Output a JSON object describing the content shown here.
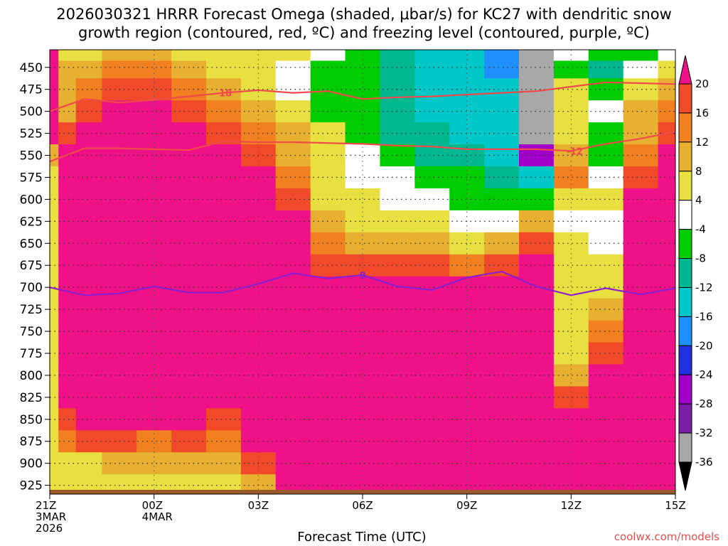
{
  "title_line1": "2026030321 HRRR Forecast Omega (shaded, μbar/s) for KC27 with dendritic snow",
  "title_line2": "growth region (contoured, red, ºC) and freezing level (contoured, purple, ºC)",
  "credit": "coolwx.com/models",
  "chart_data": {
    "type": "heatmap",
    "xlabel": "Forecast Time (UTC)",
    "ylabel": "Pressure (hPa)",
    "x_ticks": [
      {
        "hour": 0,
        "lines": [
          "21Z",
          "3MAR",
          "2026"
        ]
      },
      {
        "hour": 3,
        "lines": [
          "00Z",
          "4MAR"
        ]
      },
      {
        "hour": 6,
        "lines": [
          "03Z"
        ]
      },
      {
        "hour": 9,
        "lines": [
          "06Z"
        ]
      },
      {
        "hour": 12,
        "lines": [
          "09Z"
        ]
      },
      {
        "hour": 15,
        "lines": [
          "12Z"
        ]
      },
      {
        "hour": 18,
        "lines": [
          "15Z"
        ]
      }
    ],
    "xlim": [
      0,
      18
    ],
    "y_ticks": [
      450,
      475,
      500,
      525,
      550,
      575,
      600,
      625,
      650,
      675,
      700,
      725,
      750,
      775,
      800,
      825,
      850,
      875,
      900,
      925
    ],
    "ylim": [
      430,
      935
    ],
    "colorbar": {
      "levels": [
        -36,
        -32,
        -28,
        -24,
        -20,
        -16,
        -12,
        -8,
        -4,
        4,
        8,
        12,
        16,
        20
      ],
      "colors": [
        "#000000",
        "#a8a8a8",
        "#7a1ea8",
        "#a000c8",
        "#2030e0",
        "#1e90ff",
        "#00c8c8",
        "#00b890",
        "#00cd00",
        "#ffffff",
        "#e8e040",
        "#e8b030",
        "#f08020",
        "#f04a2a",
        "#ee1188"
      ]
    },
    "omega_series": [
      {
        "hour": 0.0,
        "values": [
          20,
          20,
          20,
          20,
          20,
          8,
          4,
          4,
          4,
          4,
          4,
          4,
          4,
          4,
          4,
          4,
          4,
          4,
          4,
          4,
          4
        ]
      },
      {
        "hour": 0.5,
        "values": [
          4,
          8,
          8,
          8,
          16,
          20,
          20,
          20,
          20,
          20,
          20,
          20,
          20,
          20,
          20,
          20,
          20,
          16,
          12,
          4,
          4
        ]
      },
      {
        "hour": 1.0,
        "values": [
          4,
          8,
          12,
          16,
          20,
          20,
          20,
          20,
          20,
          20,
          20,
          20,
          20,
          20,
          20,
          20,
          20,
          20,
          16,
          4,
          4
        ]
      },
      {
        "hour": 2.0,
        "values": [
          8,
          12,
          16,
          20,
          20,
          20,
          20,
          20,
          20,
          20,
          20,
          20,
          20,
          20,
          20,
          20,
          20,
          20,
          16,
          8,
          4
        ]
      },
      {
        "hour": 3.0,
        "values": [
          8,
          12,
          16,
          20,
          20,
          20,
          20,
          20,
          20,
          20,
          20,
          20,
          20,
          20,
          20,
          20,
          20,
          20,
          12,
          8,
          4
        ]
      },
      {
        "hour": 4.0,
        "values": [
          4,
          8,
          12,
          16,
          20,
          20,
          20,
          20,
          20,
          20,
          20,
          20,
          20,
          20,
          20,
          20,
          20,
          20,
          16,
          8,
          4
        ]
      },
      {
        "hour": 5.0,
        "values": [
          4,
          4,
          8,
          12,
          16,
          20,
          20,
          20,
          20,
          20,
          20,
          20,
          20,
          20,
          20,
          20,
          20,
          16,
          12,
          8,
          4
        ]
      },
      {
        "hour": 6.0,
        "values": [
          4,
          4,
          4,
          8,
          12,
          16,
          20,
          20,
          20,
          20,
          20,
          20,
          20,
          20,
          20,
          20,
          20,
          20,
          20,
          16,
          8
        ]
      },
      {
        "hour": 7.0,
        "values": [
          4,
          -4,
          -4,
          4,
          8,
          8,
          12,
          16,
          20,
          20,
          20,
          20,
          20,
          20,
          20,
          20,
          20,
          20,
          20,
          20,
          20
        ]
      },
      {
        "hour": 8.0,
        "values": [
          -4,
          -8,
          -8,
          -8,
          4,
          4,
          4,
          4,
          8,
          12,
          16,
          20,
          20,
          20,
          20,
          20,
          20,
          20,
          20,
          20,
          20
        ]
      },
      {
        "hour": 9.0,
        "values": [
          -8,
          -8,
          -8,
          -8,
          -8,
          -4,
          -4,
          4,
          4,
          8,
          16,
          20,
          20,
          20,
          20,
          20,
          20,
          20,
          20,
          20,
          20
        ]
      },
      {
        "hour": 10.0,
        "values": [
          -12,
          -12,
          -12,
          -12,
          -12,
          -8,
          -4,
          -4,
          4,
          8,
          16,
          20,
          20,
          20,
          20,
          20,
          20,
          20,
          20,
          20,
          20
        ]
      },
      {
        "hour": 11.0,
        "values": [
          -16,
          -16,
          -16,
          -16,
          -12,
          -12,
          -8,
          -4,
          4,
          8,
          16,
          20,
          20,
          20,
          20,
          20,
          20,
          20,
          20,
          20,
          20
        ]
      },
      {
        "hour": 12.0,
        "values": [
          -16,
          -16,
          -16,
          -16,
          -16,
          -12,
          -8,
          -8,
          -4,
          4,
          12,
          20,
          20,
          20,
          20,
          20,
          20,
          20,
          20,
          20,
          20
        ]
      },
      {
        "hour": 13.0,
        "values": [
          -20,
          -20,
          -16,
          -16,
          -16,
          -16,
          -12,
          -8,
          -4,
          8,
          16,
          20,
          20,
          20,
          20,
          20,
          20,
          20,
          20,
          20,
          20
        ]
      },
      {
        "hour": 14.0,
        "values": [
          -36,
          -36,
          -36,
          -36,
          -36,
          -28,
          -16,
          -8,
          8,
          16,
          20,
          20,
          20,
          20,
          20,
          20,
          20,
          20,
          20,
          20,
          20
        ]
      },
      {
        "hour": 15.0,
        "values": [
          -4,
          -8,
          4,
          4,
          4,
          8,
          12,
          4,
          -4,
          4,
          4,
          4,
          4,
          4,
          4,
          8,
          16,
          20,
          20,
          20,
          20
        ]
      },
      {
        "hour": 16.0,
        "values": [
          -8,
          -12,
          -8,
          -4,
          -8,
          -8,
          -4,
          4,
          -4,
          -4,
          4,
          4,
          8,
          12,
          16,
          20,
          20,
          20,
          20,
          20,
          20
        ]
      },
      {
        "hour": 17.0,
        "values": [
          -8,
          -4,
          4,
          8,
          8,
          12,
          16,
          20,
          20,
          20,
          20,
          20,
          20,
          20,
          20,
          20,
          20,
          20,
          20,
          20,
          20
        ]
      },
      {
        "hour": 18.0,
        "values": [
          -4,
          4,
          8,
          12,
          16,
          20,
          20,
          20,
          20,
          20,
          20,
          20,
          20,
          20,
          20,
          20,
          20,
          20,
          20,
          20,
          20
        ]
      }
    ],
    "omega_levels_hpa": [
      435,
      450,
      475,
      500,
      525,
      550,
      575,
      600,
      625,
      650,
      675,
      700,
      725,
      750,
      775,
      800,
      825,
      850,
      875,
      900,
      925
    ],
    "contours": [
      {
        "name": "dgz -18",
        "color": "#f04a4a",
        "label": "-18",
        "label_hour": 5.0,
        "points": [
          [
            0,
            500
          ],
          [
            1,
            486
          ],
          [
            2,
            490
          ],
          [
            3,
            487
          ],
          [
            4,
            483
          ],
          [
            5,
            479
          ],
          [
            6,
            476
          ],
          [
            7,
            479
          ],
          [
            8,
            477
          ],
          [
            9,
            486
          ],
          [
            10,
            484
          ],
          [
            11,
            483
          ],
          [
            12,
            481
          ],
          [
            13,
            479
          ],
          [
            14,
            477
          ],
          [
            15,
            472
          ],
          [
            16,
            467
          ],
          [
            17,
            468
          ],
          [
            18,
            469
          ]
        ]
      },
      {
        "name": "dgz -12",
        "color": "#f04a4a",
        "label": "-12",
        "label_hour": 15.1,
        "points": [
          [
            0,
            557
          ],
          [
            1,
            542
          ],
          [
            2,
            542
          ],
          [
            3,
            543
          ],
          [
            4,
            544
          ],
          [
            5,
            534
          ],
          [
            6,
            535
          ],
          [
            7,
            535
          ],
          [
            8,
            536
          ],
          [
            9,
            537
          ],
          [
            10,
            539
          ],
          [
            11,
            540
          ],
          [
            12,
            543
          ],
          [
            13,
            543
          ],
          [
            14,
            543
          ],
          [
            15,
            545
          ],
          [
            16,
            537
          ],
          [
            17,
            531
          ],
          [
            18,
            523
          ]
        ]
      },
      {
        "name": "freezing level 0",
        "color": "#8b1fd0",
        "label": "0",
        "label_hour": 9.0,
        "points": [
          [
            0,
            700
          ],
          [
            1,
            709
          ],
          [
            2,
            707
          ],
          [
            3,
            699
          ],
          [
            4,
            706
          ],
          [
            5,
            706
          ],
          [
            6,
            696
          ],
          [
            7,
            684
          ],
          [
            8,
            690
          ],
          [
            9,
            686
          ],
          [
            10,
            699
          ],
          [
            11,
            703
          ],
          [
            12,
            689
          ],
          [
            13,
            682
          ],
          [
            14,
            699
          ],
          [
            15,
            709
          ],
          [
            16,
            701
          ],
          [
            17,
            708
          ],
          [
            18,
            701
          ]
        ]
      }
    ]
  }
}
